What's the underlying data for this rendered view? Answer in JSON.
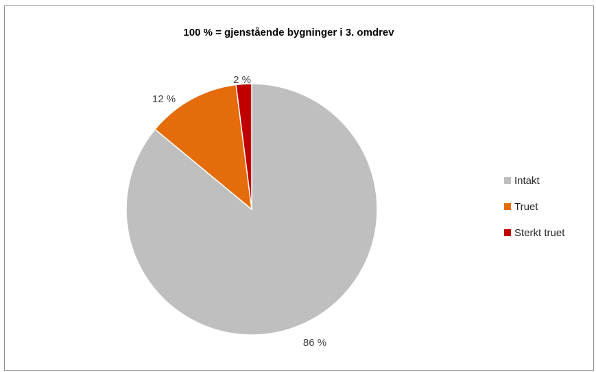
{
  "chart_data": {
    "type": "pie",
    "title": "100 % = gjenstående bygninger i 3. omdrev",
    "slices": [
      {
        "name": "Intakt",
        "value": 86,
        "label": "86 %",
        "color": "#bfbfbf"
      },
      {
        "name": "Truet",
        "value": 12,
        "label": "12 %",
        "color": "#e46c0a"
      },
      {
        "name": "Sterkt truet",
        "value": 2,
        "label": "2 %",
        "color": "#c00000"
      }
    ],
    "legend_position": "right"
  }
}
